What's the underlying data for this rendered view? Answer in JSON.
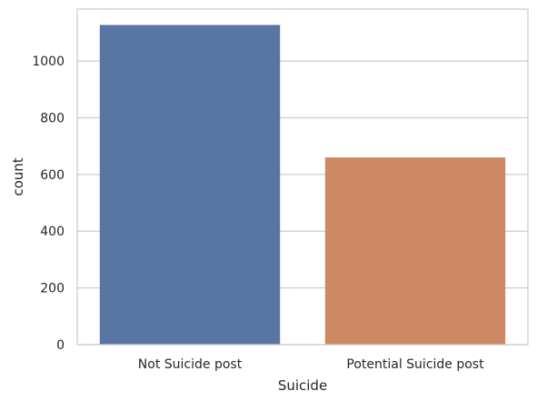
{
  "chart_data": {
    "type": "bar",
    "title": "",
    "xlabel": "Suicide",
    "ylabel": "count",
    "categories": [
      "Not Suicide post",
      "Potential Suicide post"
    ],
    "values": [
      1127,
      660
    ],
    "colors": [
      "#5875a4",
      "#cc8963"
    ],
    "ylim": [
      0,
      1183
    ],
    "yticks": [
      0,
      200,
      400,
      600,
      800,
      1000
    ],
    "grid": true,
    "grid_color": "#cccccc",
    "background": "#ffffff"
  }
}
